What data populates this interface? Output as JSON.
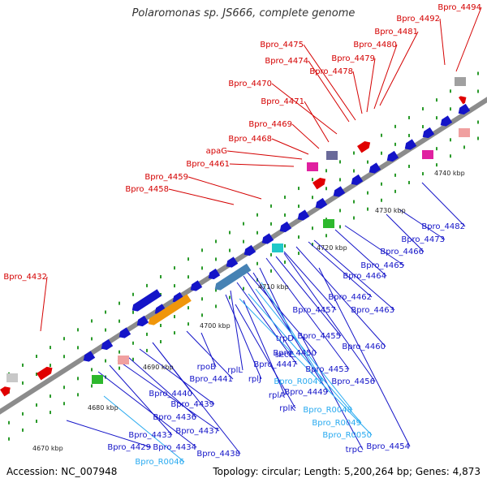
{
  "title": "Polaromonas sp. JS666, complete genome",
  "footer": {
    "accession": "Accession: NC_007948",
    "topology": "Topology: circular; Length: 5,200,264 bp; Genes: 4,873"
  },
  "colors": {
    "forward_label": "#d40000",
    "reverse_label": "#1414c8",
    "rna_label": "#28aaf0",
    "backbone": "#8c8c8c"
  },
  "ticks": [
    "4670 kbp",
    "4680 kbp",
    "4690 kbp",
    "4700 kbp",
    "4710 kbp",
    "4720 kbp",
    "4730 kbp",
    "4740 kbp"
  ],
  "forward_labels": [
    "Bpro_4494",
    "Bpro_4492",
    "Bpro_4481",
    "Bpro_4480",
    "Bpro_4479",
    "Bpro_4475",
    "Bpro_4474",
    "Bpro_4478",
    "Bpro_4470",
    "Bpro_4471",
    "Bpro_4469",
    "Bpro_4468",
    "apaG",
    "Bpro_4461",
    "Bpro_4459",
    "Bpro_4458",
    "Bpro_4432"
  ],
  "reverse_labels": [
    "Bpro_4482",
    "Bpro_4473",
    "Bpro_4466",
    "Bpro_4465",
    "Bpro_4464",
    "Bpro_4462",
    "Bpro_4463",
    "Bpro_4457",
    "Bpro_4455",
    "trpD",
    "Bpro_4460",
    "Bpro_4450",
    "secE",
    "Bpro_4447",
    "Bpro_4453",
    "rpoB",
    "rplL",
    "rplJ",
    "Bpro_4456",
    "Bpro_4449",
    "rplA",
    "rplK",
    "Bpro_4441",
    "Bpro_4440",
    "Bpro_4439",
    "Bpro_4436",
    "Bpro_4437",
    "Bpro_4433",
    "Bpro_4434",
    "Bpro_4438",
    "Bpro_4429",
    "trpC",
    "Bpro_4454"
  ],
  "rna_labels": [
    "Bpro_R0047",
    "Bpro_R0048",
    "Bpro_R0049",
    "Bpro_R0050",
    "Bpro_R0046"
  ]
}
